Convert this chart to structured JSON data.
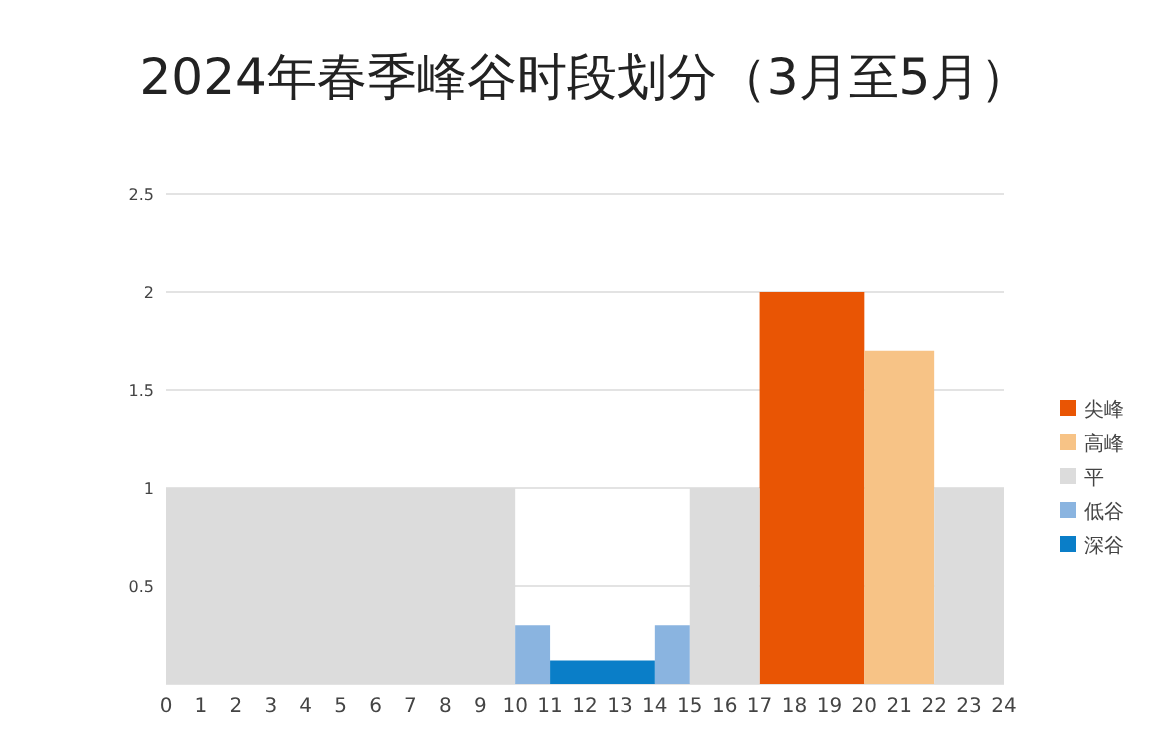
{
  "chart_data": {
    "type": "area",
    "title": "2024年春季峰谷时段划分（3月至5月）",
    "xlim": [
      0,
      24
    ],
    "xticks": [
      0,
      1,
      2,
      3,
      4,
      5,
      6,
      7,
      8,
      9,
      10,
      11,
      12,
      13,
      14,
      15,
      16,
      17,
      18,
      19,
      20,
      21,
      22,
      23,
      24
    ],
    "ylim": [
      0,
      2.5
    ],
    "yticks": [
      {
        "value": 0,
        "label": null
      },
      0.5,
      1,
      1.5,
      2,
      2.5
    ],
    "grid": "y",
    "legend": "right",
    "series": [
      {
        "name": "尖峰",
        "color": "#e95504",
        "x": [
          17,
          20
        ],
        "values": [
          2,
          2
        ]
      },
      {
        "name": "高峰",
        "color": "#f7c386",
        "x": [
          20,
          22
        ],
        "values": [
          1.7,
          1.7
        ]
      },
      {
        "name": "平",
        "color": "#dcdcdc",
        "x": [
          0,
          10,
          10,
          15,
          15,
          17,
          17,
          22,
          22,
          24
        ],
        "values": [
          1,
          1,
          0,
          0,
          1,
          1,
          0,
          0,
          1,
          1
        ]
      },
      {
        "name": "低谷",
        "color": "#8ab4e0",
        "x": [
          10,
          11,
          11,
          14,
          14,
          15
        ],
        "values": [
          0.3,
          0.3,
          0,
          0,
          0.3,
          0.3
        ]
      },
      {
        "name": "深谷",
        "color": "#0a7ec8",
        "x": [
          11,
          14
        ],
        "values": [
          0.12,
          0.12
        ]
      }
    ]
  }
}
